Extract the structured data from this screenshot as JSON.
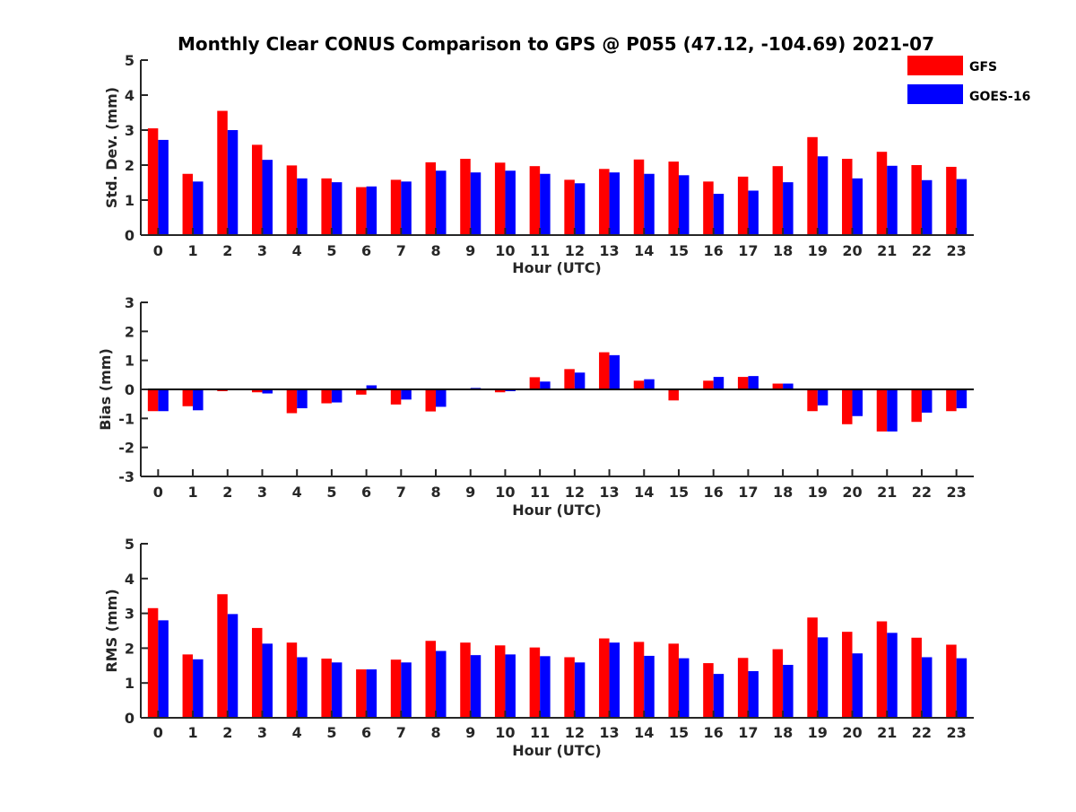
{
  "chart_data": [
    {
      "type": "bar",
      "title": "Monthly Clear CONUS Comparison to GPS @ P055 (47.12, -104.69) 2021-07",
      "xlabel": "Hour (UTC)",
      "ylabel": "Std. Dev. (mm)",
      "ylim": [
        0,
        5
      ],
      "yticks": [
        0,
        1,
        2,
        3,
        4,
        5
      ],
      "categories": [
        "0",
        "1",
        "2",
        "3",
        "4",
        "5",
        "6",
        "7",
        "8",
        "9",
        "10",
        "11",
        "12",
        "13",
        "14",
        "15",
        "16",
        "17",
        "18",
        "19",
        "20",
        "21",
        "22",
        "23"
      ],
      "legend": "top-right",
      "series": [
        {
          "name": "GFS",
          "color": "#ff0000",
          "values": [
            3.05,
            1.75,
            3.55,
            2.58,
            1.99,
            1.62,
            1.37,
            1.58,
            2.08,
            2.18,
            2.07,
            1.97,
            1.58,
            1.89,
            2.16,
            2.1,
            1.53,
            1.67,
            1.97,
            2.8,
            2.18,
            2.38,
            2.0,
            1.95
          ]
        },
        {
          "name": "GOES-16",
          "color": "#0000ff",
          "values": [
            2.72,
            1.53,
            3.0,
            2.15,
            1.62,
            1.51,
            1.39,
            1.53,
            1.84,
            1.79,
            1.84,
            1.75,
            1.48,
            1.79,
            1.75,
            1.71,
            1.18,
            1.27,
            1.51,
            2.25,
            1.62,
            1.98,
            1.57,
            1.6
          ]
        }
      ]
    },
    {
      "type": "bar",
      "xlabel": "Hour (UTC)",
      "ylabel": "Bias (mm)",
      "ylim": [
        -3,
        3
      ],
      "yticks": [
        -3,
        -2,
        -1,
        0,
        1,
        2,
        3
      ],
      "baseline": 0,
      "categories": [
        "0",
        "1",
        "2",
        "3",
        "4",
        "5",
        "6",
        "7",
        "8",
        "9",
        "10",
        "11",
        "12",
        "13",
        "14",
        "15",
        "16",
        "17",
        "18",
        "19",
        "20",
        "21",
        "22",
        "23"
      ],
      "series": [
        {
          "name": "GFS",
          "color": "#ff0000",
          "values": [
            -0.75,
            -0.58,
            -0.06,
            -0.1,
            -0.82,
            -0.48,
            -0.18,
            -0.52,
            -0.76,
            -0.02,
            -0.1,
            0.42,
            0.7,
            1.28,
            0.3,
            -0.38,
            0.3,
            0.43,
            0.2,
            -0.75,
            -1.2,
            -1.45,
            -1.12,
            -0.75
          ]
        },
        {
          "name": "GOES-16",
          "color": "#0000ff",
          "values": [
            -0.75,
            -0.72,
            0.0,
            -0.14,
            -0.65,
            -0.45,
            0.14,
            -0.35,
            -0.6,
            0.05,
            -0.06,
            0.27,
            0.58,
            1.18,
            0.35,
            0.0,
            0.43,
            0.46,
            0.2,
            -0.55,
            -0.92,
            -1.45,
            -0.8,
            -0.65
          ]
        }
      ]
    },
    {
      "type": "bar",
      "xlabel": "Hour (UTC)",
      "ylabel": "RMS (mm)",
      "ylim": [
        0,
        5
      ],
      "yticks": [
        0,
        1,
        2,
        3,
        4,
        5
      ],
      "categories": [
        "0",
        "1",
        "2",
        "3",
        "4",
        "5",
        "6",
        "7",
        "8",
        "9",
        "10",
        "11",
        "12",
        "13",
        "14",
        "15",
        "16",
        "17",
        "18",
        "19",
        "20",
        "21",
        "22",
        "23"
      ],
      "series": [
        {
          "name": "GFS",
          "color": "#ff0000",
          "values": [
            3.15,
            1.82,
            3.55,
            2.58,
            2.16,
            1.7,
            1.39,
            1.67,
            2.21,
            2.16,
            2.08,
            2.02,
            1.74,
            2.28,
            2.18,
            2.13,
            1.57,
            1.72,
            1.97,
            2.88,
            2.47,
            2.77,
            2.3,
            2.1
          ]
        },
        {
          "name": "GOES-16",
          "color": "#0000ff",
          "values": [
            2.8,
            1.68,
            2.98,
            2.13,
            1.74,
            1.59,
            1.39,
            1.59,
            1.92,
            1.8,
            1.82,
            1.77,
            1.59,
            2.16,
            1.78,
            1.71,
            1.26,
            1.34,
            1.52,
            2.31,
            1.85,
            2.44,
            1.74,
            1.71
          ]
        }
      ]
    }
  ]
}
